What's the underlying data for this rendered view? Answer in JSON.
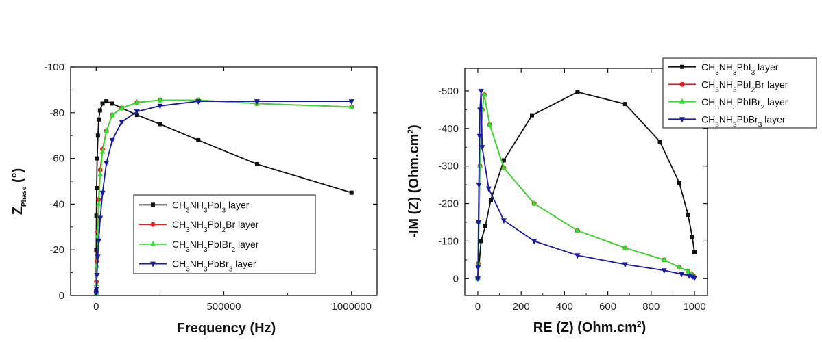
{
  "chart_data": [
    {
      "type": "line",
      "xlabel": "Frequency (Hz)",
      "ylabel": "Z",
      "ylabel_sub": "Phase",
      "ylabel_unit": "(°)",
      "xlim": [
        -100000,
        1100000
      ],
      "ylim": [
        0,
        -100
      ],
      "x_ticks": [
        0,
        500000,
        1000000
      ],
      "x_tick_labels": [
        "0",
        "500000",
        "1000000"
      ],
      "y_ticks": [
        0,
        -20,
        -40,
        -60,
        -80,
        -100
      ],
      "y_tick_labels": [
        "0",
        "-20",
        "-40",
        "-60",
        "-80",
        "-100"
      ],
      "legend_position": "center-right",
      "grid": false,
      "series": [
        {
          "name": "CH3NH3PbI3 layer",
          "label_parts": [
            [
              "CH",
              ""
            ],
            [
              "3",
              "sub"
            ],
            [
              "NH",
              ""
            ],
            [
              "3",
              "sub"
            ],
            [
              "PbI",
              ""
            ],
            [
              "3",
              "sub"
            ],
            [
              " layer",
              ""
            ]
          ],
          "color": "#111111",
          "marker": "square",
          "x": [
            100,
            500,
            1000,
            2000,
            4000,
            7000,
            10000,
            15000,
            25000,
            40000,
            63000,
            100000,
            160000,
            250000,
            400000,
            630000,
            1000000
          ],
          "y": [
            -2,
            -20,
            -35,
            -47,
            -60,
            -70,
            -77,
            -81,
            -84,
            -85,
            -84,
            -82,
            -79,
            -75,
            -68,
            -57.5,
            -45
          ]
        },
        {
          "name": "CH3NH3PbI2Br layer",
          "label_parts": [
            [
              "CH",
              ""
            ],
            [
              "3",
              "sub"
            ],
            [
              "NH",
              ""
            ],
            [
              "3",
              "sub"
            ],
            [
              "PbI",
              ""
            ],
            [
              "2",
              "sub"
            ],
            [
              "Br layer",
              ""
            ]
          ],
          "color": "#e02020",
          "marker": "circle",
          "x": [
            100,
            1000,
            3000,
            6000,
            10000,
            16000,
            25000,
            40000,
            63000,
            100000,
            160000,
            250000,
            400000,
            630000,
            1000000
          ],
          "y": [
            -1,
            -6,
            -15,
            -28,
            -42,
            -55,
            -64,
            -72,
            -79,
            -82,
            -84.5,
            -85.5,
            -85.5,
            -84,
            -82.5
          ]
        },
        {
          "name": "CH3NH3PbIBr2 layer",
          "label_parts": [
            [
              "CH",
              ""
            ],
            [
              "3",
              "sub"
            ],
            [
              "NH",
              ""
            ],
            [
              "3",
              "sub"
            ],
            [
              "PbIBr",
              ""
            ],
            [
              "2",
              "sub"
            ],
            [
              " layer",
              ""
            ]
          ],
          "color": "#33dd33",
          "marker": "triangle-up",
          "x": [
            100,
            1000,
            3000,
            6000,
            10000,
            16000,
            25000,
            40000,
            63000,
            100000,
            160000,
            250000,
            400000,
            630000,
            1000000
          ],
          "y": [
            -1,
            -5,
            -13,
            -26,
            -40,
            -53,
            -63,
            -72,
            -79,
            -82,
            -84.5,
            -85.5,
            -85.5,
            -84,
            -82.5
          ]
        },
        {
          "name": "CH3NH3PbBr3 layer",
          "label_parts": [
            [
              "CH",
              ""
            ],
            [
              "3",
              "sub"
            ],
            [
              "NH",
              ""
            ],
            [
              "3",
              "sub"
            ],
            [
              "PbBr",
              ""
            ],
            [
              "3",
              "sub"
            ],
            [
              " layer",
              ""
            ]
          ],
          "color": "#1a1aa0",
          "marker": "triangle-down",
          "x": [
            100,
            1000,
            3000,
            6000,
            10000,
            16000,
            25000,
            40000,
            63000,
            100000,
            160000,
            250000,
            400000,
            630000,
            1000000
          ],
          "y": [
            -1,
            -3,
            -9,
            -17,
            -24,
            -34,
            -45,
            -58,
            -68,
            -76,
            -80.5,
            -83,
            -85,
            -85,
            -85
          ]
        }
      ]
    },
    {
      "type": "line",
      "xlabel": "RE (Z) (Ohm.cm²)",
      "xlabel_main": "RE (Z) (Ohm.cm",
      "xlabel_sup": "2",
      "xlabel_end": ")",
      "ylabel_main": "-IM (Z) (Ohm.cm",
      "ylabel_sup": "2",
      "ylabel_end": ")",
      "xlim": [
        -60,
        1060
      ],
      "ylim": [
        -45,
        560
      ],
      "x_ticks": [
        0,
        200,
        400,
        600,
        800,
        1000
      ],
      "x_tick_labels": [
        "0",
        "200",
        "400",
        "600",
        "800",
        "1000"
      ],
      "y_ticks": [
        0,
        100,
        200,
        300,
        400,
        500
      ],
      "y_tick_labels": [
        "0",
        "-100",
        "-200",
        "-300",
        "-400",
        "-500"
      ],
      "legend_position": "top-right",
      "grid": false,
      "series": [
        {
          "name": "CH3NH3PbI3 layer",
          "label_parts": [
            [
              "CH",
              ""
            ],
            [
              "3",
              "sub"
            ],
            [
              "NH",
              ""
            ],
            [
              "3",
              "sub"
            ],
            [
              "PbI",
              ""
            ],
            [
              "3",
              "sub"
            ],
            [
              " layer",
              ""
            ]
          ],
          "color": "#111111",
          "marker": "square",
          "x": [
            0,
            15,
            35,
            60,
            120,
            250,
            460,
            680,
            840,
            930,
            970,
            990,
            1000
          ],
          "y": [
            0,
            100,
            140,
            210,
            315,
            435,
            497,
            465,
            365,
            255,
            170,
            110,
            70
          ]
        },
        {
          "name": "CH3NH3PbI2Br layer",
          "label_parts": [
            [
              "CH",
              ""
            ],
            [
              "3",
              "sub"
            ],
            [
              "NH",
              ""
            ],
            [
              "3",
              "sub"
            ],
            [
              "PbI",
              ""
            ],
            [
              "2",
              "sub"
            ],
            [
              "Br layer",
              ""
            ]
          ],
          "color": "#e02020",
          "marker": "circle",
          "x": [
            0,
            2,
            5,
            10,
            20,
            30,
            55,
            120,
            260,
            460,
            680,
            860,
            930,
            970,
            985,
            995
          ],
          "y": [
            0,
            40,
            150,
            300,
            450,
            490,
            410,
            295,
            200,
            128,
            82,
            50,
            30,
            20,
            12,
            8
          ]
        },
        {
          "name": "CH3NH3PbIBr2 layer",
          "label_parts": [
            [
              "CH",
              ""
            ],
            [
              "3",
              "sub"
            ],
            [
              "NH",
              ""
            ],
            [
              "3",
              "sub"
            ],
            [
              "PbIBr",
              ""
            ],
            [
              "2",
              "sub"
            ],
            [
              " layer",
              ""
            ]
          ],
          "color": "#33dd33",
          "marker": "triangle-up",
          "x": [
            0,
            2,
            5,
            10,
            20,
            30,
            55,
            120,
            260,
            460,
            680,
            860,
            930,
            970,
            985,
            995
          ],
          "y": [
            0,
            40,
            150,
            300,
            450,
            490,
            410,
            295,
            200,
            128,
            82,
            50,
            30,
            20,
            12,
            8
          ]
        },
        {
          "name": "CH3NH3PbBr3 layer",
          "label_parts": [
            [
              "CH",
              ""
            ],
            [
              "3",
              "sub"
            ],
            [
              "NH",
              ""
            ],
            [
              "3",
              "sub"
            ],
            [
              "PbBr",
              ""
            ],
            [
              "3",
              "sub"
            ],
            [
              " layer",
              ""
            ]
          ],
          "color": "#1a1aa0",
          "marker": "triangle-down",
          "x": [
            0,
            1,
            3,
            5,
            8,
            10,
            15,
            20,
            50,
            120,
            260,
            460,
            680,
            860,
            940,
            975,
            990,
            1000
          ],
          "y": [
            0,
            30,
            150,
            250,
            380,
            450,
            500,
            350,
            240,
            155,
            100,
            62,
            38,
            22,
            12,
            8,
            5,
            2
          ]
        }
      ]
    }
  ]
}
